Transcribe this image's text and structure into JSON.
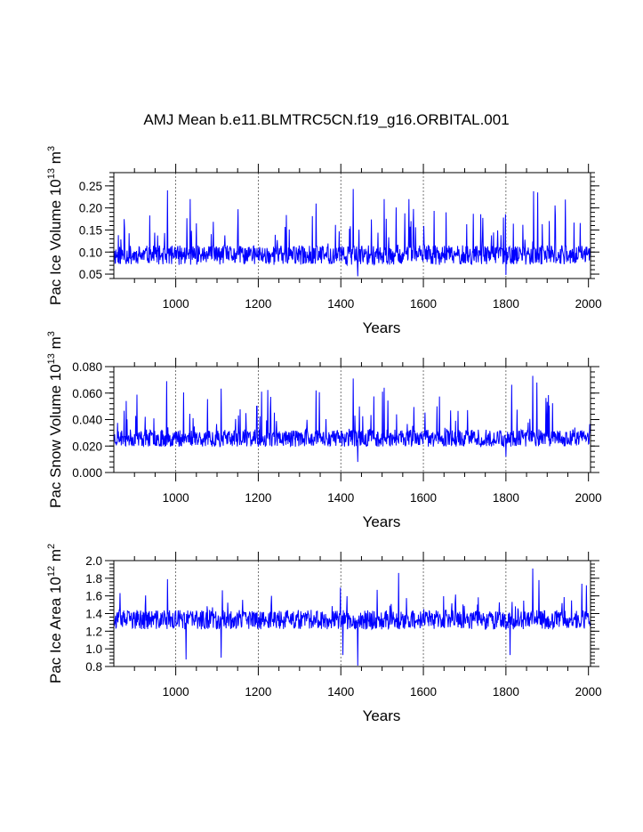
{
  "chart_data": [
    {
      "type": "line",
      "title": "AMJ Mean b.e11.BLMTRC5CN.f19_g16.ORBITAL.001",
      "xlabel": "Years",
      "ylabel": {
        "text": "Pac Ice Volume 10",
        "exp": "13",
        "unit": " m",
        "unit_exp": "3"
      },
      "xlim": [
        850,
        2005
      ],
      "ylim": [
        0.04,
        0.28
      ],
      "xticks": [
        1000,
        1200,
        1400,
        1600,
        1800,
        2000
      ],
      "xtick_labels": [
        "1000",
        "1200",
        "1400",
        "1600",
        "1800",
        "2000"
      ],
      "yticks": [
        0.05,
        0.1,
        0.15,
        0.2,
        0.25
      ],
      "ytick_labels": [
        "0.05",
        "0.10",
        "0.15",
        "0.20",
        "0.25"
      ],
      "grid_x": [
        1000,
        1200,
        1400,
        1600,
        1800
      ],
      "line_color": "#0000ff",
      "series": [
        {
          "name": "Pac Ice Volume",
          "x_start": 850,
          "x_end": 2005,
          "baseline": 0.093,
          "noise": 0.022,
          "seed": 11,
          "spike_prob": 0.07,
          "spike_scale": 0.11,
          "peaks": [
            {
              "x": 980,
              "y": 0.24
            },
            {
              "x": 1035,
              "y": 0.22
            },
            {
              "x": 1430,
              "y": 0.243
            },
            {
              "x": 1867,
              "y": 0.238
            },
            {
              "x": 1877,
              "y": 0.235
            },
            {
              "x": 1340,
              "y": 0.21
            },
            {
              "x": 1505,
              "y": 0.22
            },
            {
              "x": 1565,
              "y": 0.22
            }
          ],
          "troughs": [
            {
              "x": 1441,
              "y": 0.045
            },
            {
              "x": 1800,
              "y": 0.048
            }
          ]
        }
      ]
    },
    {
      "type": "line",
      "xlabel": "Years",
      "ylabel": {
        "text": "Pac Snow Volume 10",
        "exp": "13",
        "unit": " m",
        "unit_exp": "3"
      },
      "xlim": [
        850,
        2005
      ],
      "ylim": [
        0.0,
        0.08
      ],
      "xticks": [
        1000,
        1200,
        1400,
        1600,
        1800,
        2000
      ],
      "xtick_labels": [
        "1000",
        "1200",
        "1400",
        "1600",
        "1800",
        "2000"
      ],
      "yticks": [
        0.0,
        0.02,
        0.04,
        0.06,
        0.08
      ],
      "ytick_labels": [
        "0.000",
        "0.020",
        "0.040",
        "0.060",
        "0.080"
      ],
      "grid_x": [
        1000,
        1200,
        1400,
        1600,
        1800
      ],
      "line_color": "#0000ff",
      "series": [
        {
          "name": "Pac Snow Volume",
          "x_start": 850,
          "x_end": 2005,
          "baseline": 0.026,
          "noise": 0.0065,
          "seed": 23,
          "spike_prob": 0.07,
          "spike_scale": 0.035,
          "peaks": [
            {
              "x": 978,
              "y": 0.069
            },
            {
              "x": 1430,
              "y": 0.071
            },
            {
              "x": 1865,
              "y": 0.073
            },
            {
              "x": 1875,
              "y": 0.068
            },
            {
              "x": 1340,
              "y": 0.062
            },
            {
              "x": 1505,
              "y": 0.064
            }
          ],
          "troughs": [
            {
              "x": 1441,
              "y": 0.008
            },
            {
              "x": 1800,
              "y": 0.012
            }
          ]
        }
      ]
    },
    {
      "type": "line",
      "xlabel": "Years",
      "ylabel": {
        "text": "Pac Ice Area 10",
        "exp": "12",
        "unit": " m",
        "unit_exp": "2"
      },
      "xlim": [
        850,
        2005
      ],
      "ylim": [
        0.8,
        2.0
      ],
      "xticks": [
        1000,
        1200,
        1400,
        1600,
        1800,
        2000
      ],
      "xtick_labels": [
        "1000",
        "1200",
        "1400",
        "1600",
        "1800",
        "2000"
      ],
      "yticks": [
        0.8,
        1.0,
        1.2,
        1.4,
        1.6,
        1.8,
        2.0
      ],
      "ytick_labels": [
        "0.8",
        "1.0",
        "1.2",
        "1.4",
        "1.6",
        "1.8",
        "2.0"
      ],
      "grid_x": [
        1000,
        1200,
        1400,
        1600,
        1800
      ],
      "line_color": "#0000ff",
      "series": [
        {
          "name": "Pac Ice Area",
          "x_start": 850,
          "x_end": 2005,
          "baseline": 1.33,
          "noise": 0.11,
          "seed": 37,
          "spike_prob": 0.05,
          "spike_scale": 0.3,
          "peaks": [
            {
              "x": 980,
              "y": 1.79
            },
            {
              "x": 1540,
              "y": 1.86
            },
            {
              "x": 1865,
              "y": 1.91
            },
            {
              "x": 1880,
              "y": 1.78
            },
            {
              "x": 1995,
              "y": 1.72
            }
          ],
          "troughs": [
            {
              "x": 1025,
              "y": 0.88
            },
            {
              "x": 1110,
              "y": 0.9
            },
            {
              "x": 1441,
              "y": 0.81
            },
            {
              "x": 1405,
              "y": 0.93
            },
            {
              "x": 1810,
              "y": 0.93
            }
          ]
        }
      ]
    }
  ]
}
